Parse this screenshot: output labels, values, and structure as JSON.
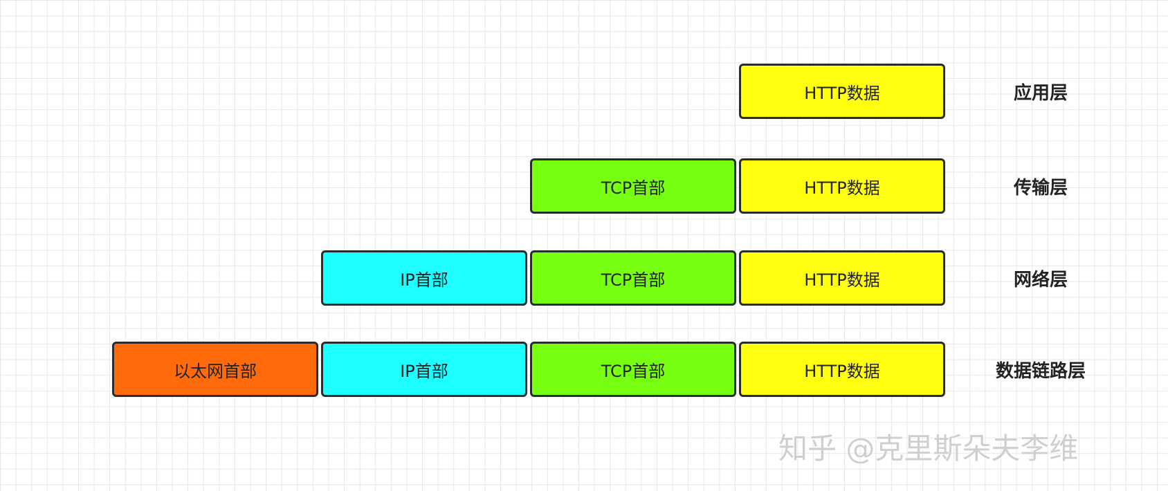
{
  "rows": [
    {
      "cells": [
        "HTTP数据"
      ],
      "layer": "应用层"
    },
    {
      "cells": [
        "TCP首部",
        "HTTP数据"
      ],
      "layer": "传输层"
    },
    {
      "cells": [
        "IP首部",
        "TCP首部",
        "HTTP数据"
      ],
      "layer": "网络层"
    },
    {
      "cells": [
        "以太网首部",
        "IP首部",
        "TCP首部",
        "HTTP数据"
      ],
      "layer": "数据链路层"
    }
  ],
  "watermark": "知乎 @克里斯朵夫李维"
}
